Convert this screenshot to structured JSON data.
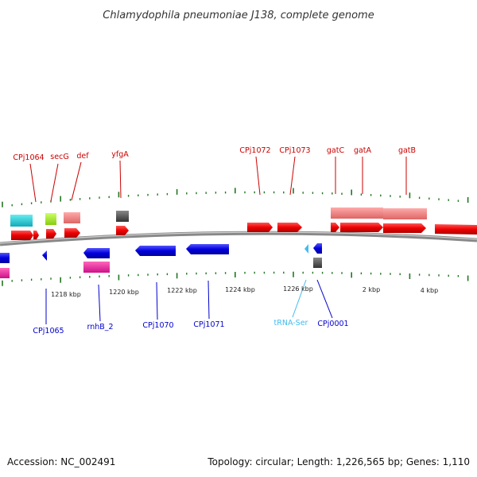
{
  "title": "Chlamydophila pneumoniae J138, complete genome",
  "footer": {
    "accession": "Accession: NC_002491",
    "summary": "Topology: circular; Length: 1,226,565 bp; Genes: 1,110"
  },
  "colors": {
    "forward": "#ee0000",
    "reverse": "#0000dd",
    "trna": "#44bbee",
    "backbone": "#999999",
    "tick": "#227722"
  },
  "forward_labels": [
    "CPj1064",
    "secG",
    "def",
    "yfgA",
    "CPj1072",
    "CPj1073",
    "gatC",
    "gatA",
    "gatB"
  ],
  "reverse_labels": [
    "CPj1065",
    "rnhB_2",
    "CPj1070",
    "CPj1071",
    "tRNA-Ser",
    "CPj0001"
  ],
  "scale_labels": [
    "1218 kbp",
    "1220 kbp",
    "1222 kbp",
    "1224 kbp",
    "1226 kbp",
    "2 kbp",
    "4 kbp"
  ]
}
